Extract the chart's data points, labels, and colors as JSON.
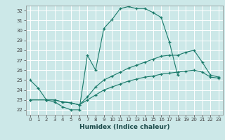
{
  "title": "",
  "xlabel": "Humidex (Indice chaleur)",
  "xlim": [
    -0.5,
    23.5
  ],
  "ylim": [
    21.5,
    32.5
  ],
  "yticks": [
    22,
    23,
    24,
    25,
    26,
    27,
    28,
    29,
    30,
    31,
    32
  ],
  "xticks": [
    0,
    1,
    2,
    3,
    4,
    5,
    6,
    7,
    8,
    9,
    10,
    11,
    12,
    13,
    14,
    15,
    16,
    17,
    18,
    19,
    20,
    21,
    22,
    23
  ],
  "bg_color": "#cce8e8",
  "grid_color": "#ffffff",
  "line_color": "#1a7a6a",
  "lines": [
    {
      "x": [
        0,
        1,
        2,
        3,
        4,
        5,
        6,
        7,
        8,
        9,
        10,
        11,
        12,
        13,
        14,
        15,
        16,
        17,
        18
      ],
      "y": [
        25.0,
        24.2,
        23.0,
        22.8,
        22.3,
        22.0,
        22.0,
        27.5,
        26.0,
        30.2,
        31.1,
        32.2,
        32.4,
        32.2,
        32.2,
        31.8,
        31.3,
        28.8,
        25.5
      ]
    },
    {
      "x": [
        0,
        2,
        3,
        4,
        5,
        6,
        7,
        8,
        9,
        10,
        11,
        12,
        13,
        14,
        15,
        16,
        17,
        18,
        19,
        20,
        21,
        22,
        23
      ],
      "y": [
        23.0,
        23.0,
        23.0,
        22.8,
        22.7,
        22.5,
        23.3,
        24.3,
        25.0,
        25.4,
        25.8,
        26.2,
        26.5,
        26.8,
        27.1,
        27.4,
        27.5,
        27.5,
        27.8,
        28.0,
        26.8,
        25.5,
        25.3
      ]
    },
    {
      "x": [
        0,
        2,
        3,
        4,
        5,
        6,
        7,
        8,
        9,
        10,
        11,
        12,
        13,
        14,
        15,
        16,
        17,
        18,
        19,
        20,
        21,
        22,
        23
      ],
      "y": [
        23.0,
        23.0,
        23.0,
        22.8,
        22.7,
        22.5,
        23.0,
        23.5,
        24.0,
        24.3,
        24.6,
        24.9,
        25.1,
        25.3,
        25.4,
        25.6,
        25.7,
        25.8,
        25.9,
        26.0,
        25.8,
        25.3,
        25.2
      ]
    }
  ]
}
